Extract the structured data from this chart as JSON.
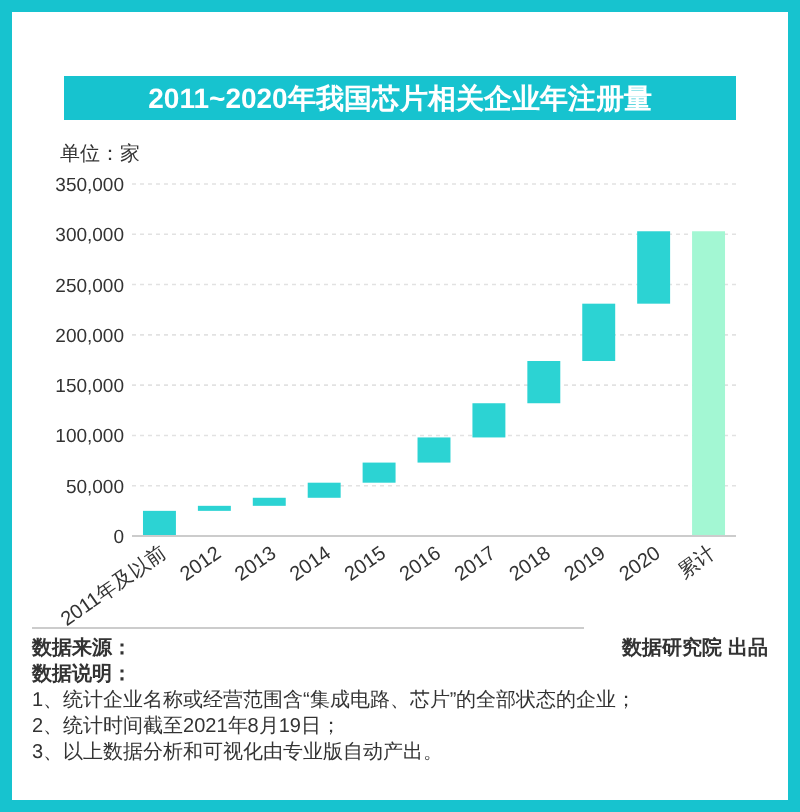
{
  "chart_data": {
    "type": "bar",
    "title": "2011~2020年我国芯片相关企业年注册量",
    "ylabel": "单位：家",
    "categories": [
      "2011年及以前",
      "2012",
      "2013",
      "2014",
      "2015",
      "2016",
      "2017",
      "2018",
      "2019",
      "2020",
      "累计"
    ],
    "values": [
      25000,
      5000,
      8000,
      15000,
      20000,
      25000,
      34000,
      42000,
      57000,
      72000,
      303000
    ],
    "base": [
      0,
      25000,
      30000,
      38000,
      53000,
      73000,
      98000,
      132000,
      174000,
      231000,
      0
    ],
    "colors": [
      "#2cd3d3",
      "#2cd3d3",
      "#2cd3d3",
      "#2cd3d3",
      "#2cd3d3",
      "#2cd3d3",
      "#2cd3d3",
      "#2cd3d3",
      "#2cd3d3",
      "#2cd3d3",
      "#a3f7d3"
    ],
    "ylim": [
      0,
      350000
    ],
    "yticks": [
      0,
      {
        "value": 50000,
        "label": "50,000"
      },
      {
        "value": 100000,
        "label": "100,000"
      },
      {
        "value": 150000,
        "label": "150,000"
      },
      {
        "value": 200000,
        "label": "200,000"
      },
      {
        "value": 250000,
        "label": "250,000"
      },
      {
        "value": 300000,
        "label": "300,000"
      },
      {
        "value": 350000,
        "label": "350,000"
      }
    ],
    "grid": "y",
    "annotations": [
      "数据来源：",
      "数据说明：",
      "1、统计企业名称或经营范围含“集成电路、芯片”的全部状态的企业；",
      "2、统计时间截至2021年8月19日；",
      "3、以上数据分析和可视化由专业版自动产出。",
      "数据研究院 出品"
    ]
  }
}
